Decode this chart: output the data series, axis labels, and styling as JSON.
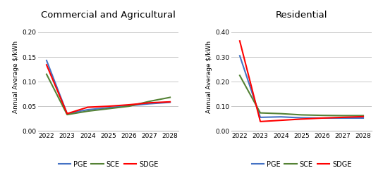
{
  "years": [
    2022,
    2023,
    2024,
    2025,
    2026,
    2027,
    2028
  ],
  "comm_agri": {
    "title": "Commercial and Agricultural",
    "ylabel": "Annual Average $/kWh",
    "ylim": [
      0,
      0.22
    ],
    "yticks": [
      0.0,
      0.05,
      0.1,
      0.15,
      0.2
    ],
    "PGE": [
      0.143,
      0.035,
      0.043,
      0.047,
      0.051,
      0.055,
      0.058
    ],
    "SCE": [
      0.115,
      0.033,
      0.04,
      0.045,
      0.05,
      0.06,
      0.068
    ],
    "SDGE": [
      0.134,
      0.035,
      0.048,
      0.05,
      0.053,
      0.057,
      0.059
    ]
  },
  "residential": {
    "title": "Residential",
    "ylabel": "Annual Average $/kWh",
    "ylim": [
      0,
      0.44
    ],
    "yticks": [
      0.0,
      0.1,
      0.2,
      0.3,
      0.4
    ],
    "PGE": [
      0.305,
      0.055,
      0.057,
      0.053,
      0.052,
      0.052,
      0.052
    ],
    "SCE": [
      0.225,
      0.073,
      0.07,
      0.065,
      0.063,
      0.062,
      0.062
    ],
    "SDGE": [
      0.365,
      0.038,
      0.043,
      0.048,
      0.052,
      0.055,
      0.058
    ]
  },
  "colors": {
    "PGE": "#4472C4",
    "SCE": "#548235",
    "SDGE": "#FF0000"
  },
  "line_width": 1.5,
  "bg_color": "#FFFFFF",
  "grid_color": "#C8C8C8",
  "title_fontsize": 9.5,
  "label_fontsize": 6.5,
  "tick_fontsize": 6.5,
  "legend_fontsize": 7
}
